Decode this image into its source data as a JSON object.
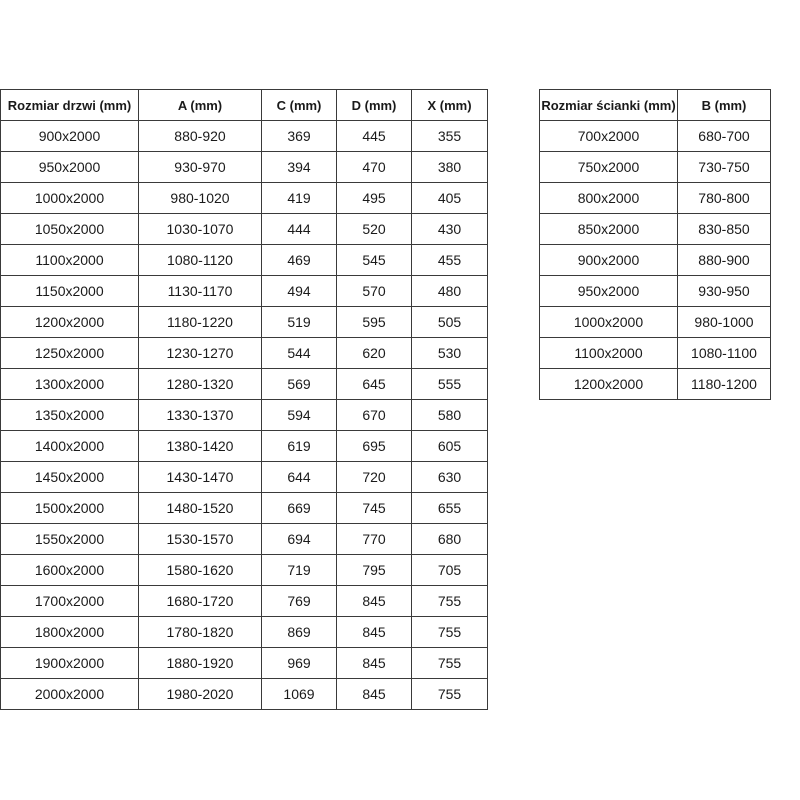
{
  "door_table": {
    "headers": [
      "Rozmiar drzwi (mm)",
      "A (mm)",
      "C (mm)",
      "D (mm)",
      "X (mm)"
    ],
    "rows": [
      [
        "900x2000",
        "880-920",
        "369",
        "445",
        "355"
      ],
      [
        "950x2000",
        "930-970",
        "394",
        "470",
        "380"
      ],
      [
        "1000x2000",
        "980-1020",
        "419",
        "495",
        "405"
      ],
      [
        "1050x2000",
        "1030-1070",
        "444",
        "520",
        "430"
      ],
      [
        "1100x2000",
        "1080-1120",
        "469",
        "545",
        "455"
      ],
      [
        "1150x2000",
        "1130-1170",
        "494",
        "570",
        "480"
      ],
      [
        "1200x2000",
        "1180-1220",
        "519",
        "595",
        "505"
      ],
      [
        "1250x2000",
        "1230-1270",
        "544",
        "620",
        "530"
      ],
      [
        "1300x2000",
        "1280-1320",
        "569",
        "645",
        "555"
      ],
      [
        "1350x2000",
        "1330-1370",
        "594",
        "670",
        "580"
      ],
      [
        "1400x2000",
        "1380-1420",
        "619",
        "695",
        "605"
      ],
      [
        "1450x2000",
        "1430-1470",
        "644",
        "720",
        "630"
      ],
      [
        "1500x2000",
        "1480-1520",
        "669",
        "745",
        "655"
      ],
      [
        "1550x2000",
        "1530-1570",
        "694",
        "770",
        "680"
      ],
      [
        "1600x2000",
        "1580-1620",
        "719",
        "795",
        "705"
      ],
      [
        "1700x2000",
        "1680-1720",
        "769",
        "845",
        "755"
      ],
      [
        "1800x2000",
        "1780-1820",
        "869",
        "845",
        "755"
      ],
      [
        "1900x2000",
        "1880-1920",
        "969",
        "845",
        "755"
      ],
      [
        "2000x2000",
        "1980-2020",
        "1069",
        "845",
        "755"
      ]
    ]
  },
  "wall_table": {
    "headers": [
      "Rozmiar ścianki (mm)",
      "B (mm)"
    ],
    "rows": [
      [
        "700x2000",
        "680-700"
      ],
      [
        "750x2000",
        "730-750"
      ],
      [
        "800x2000",
        "780-800"
      ],
      [
        "850x2000",
        "830-850"
      ],
      [
        "900x2000",
        "880-900"
      ],
      [
        "950x2000",
        "930-950"
      ],
      [
        "1000x2000",
        "980-1000"
      ],
      [
        "1100x2000",
        "1080-1100"
      ],
      [
        "1200x2000",
        "1180-1200"
      ]
    ]
  }
}
